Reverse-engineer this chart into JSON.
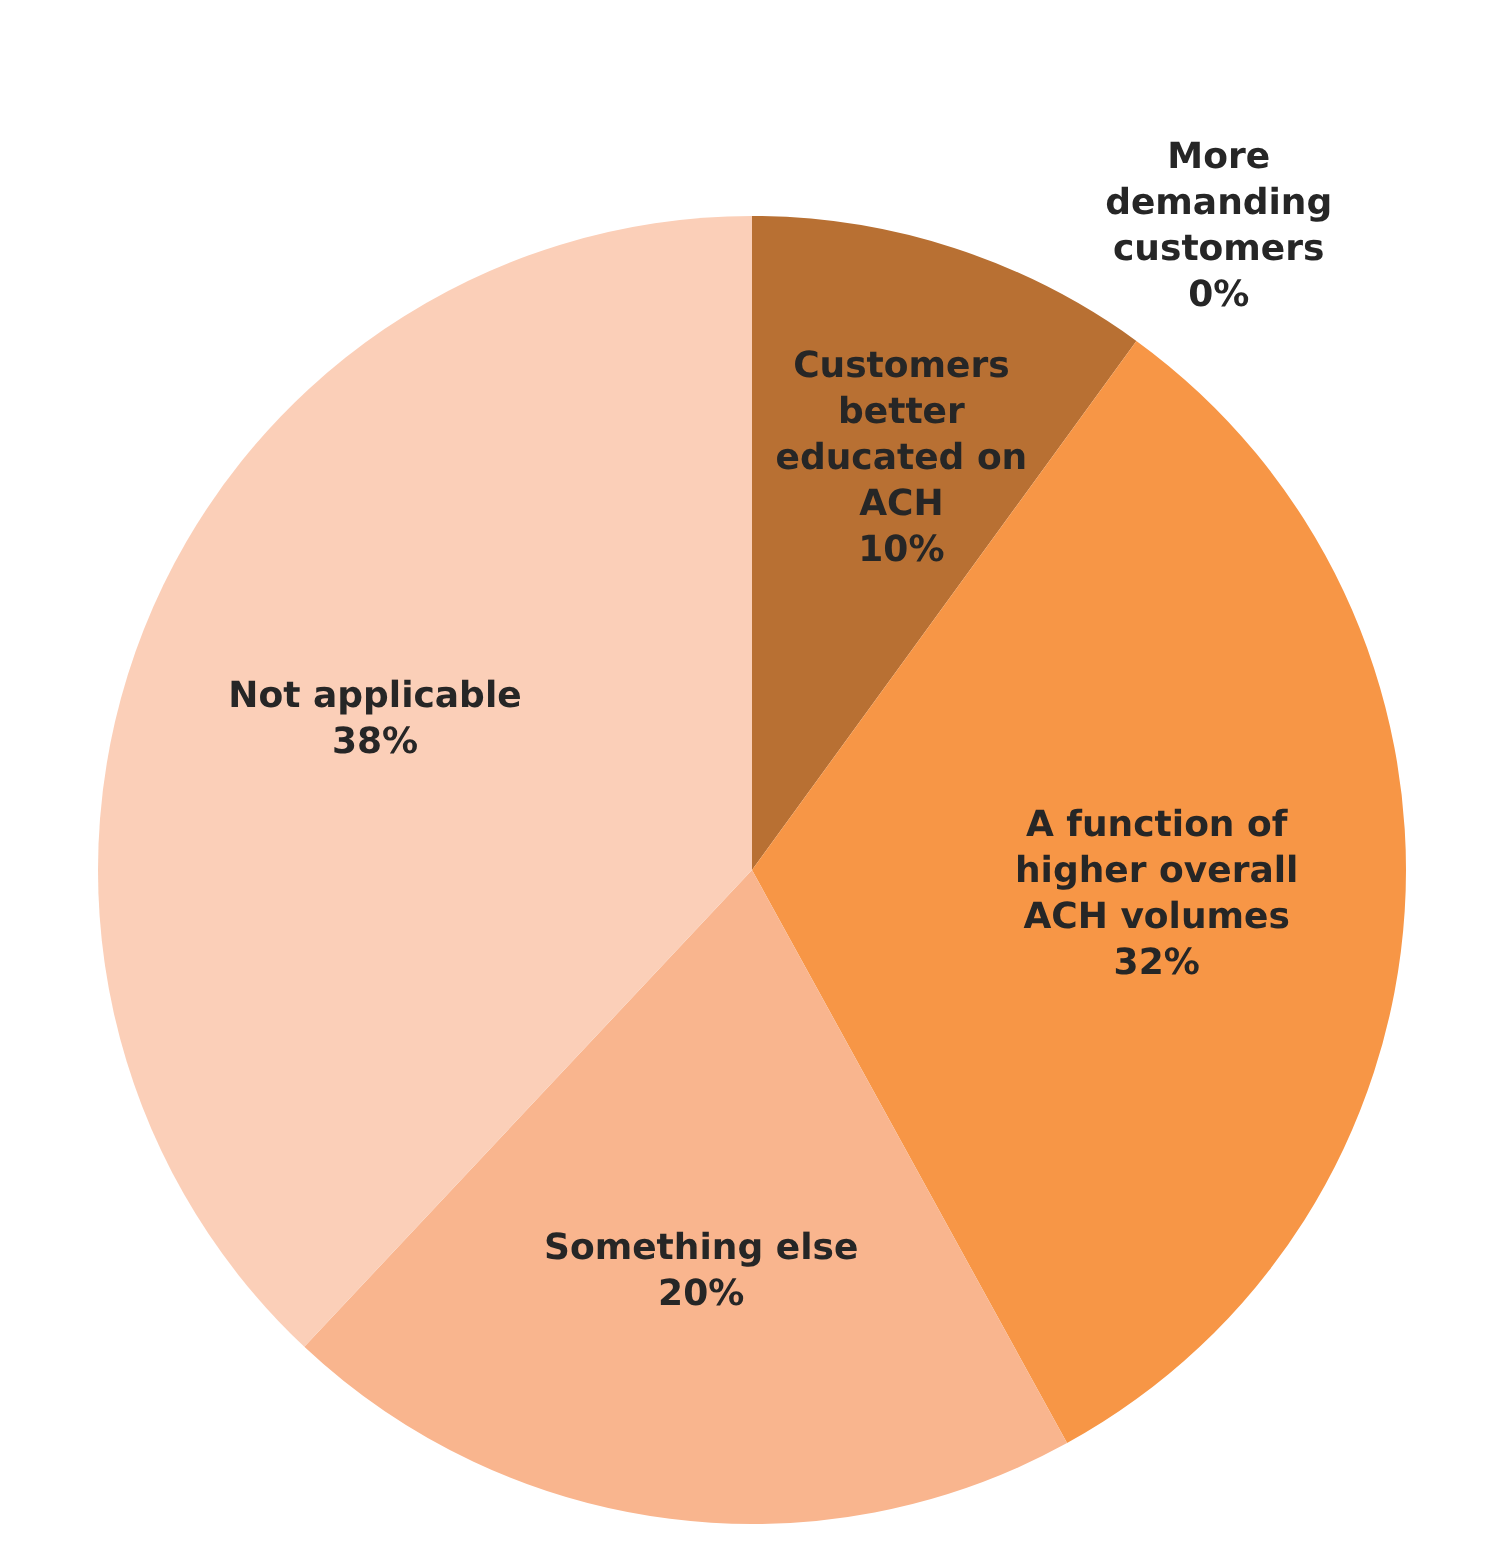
{
  "chart_data": {
    "type": "pie",
    "categories": [
      "Customers better educated on ACH",
      "More demanding customers",
      "A function of higher overall ACH volumes",
      "Something else",
      "Not applicable"
    ],
    "values": [
      10,
      0,
      32,
      20,
      38
    ],
    "colors": [
      "#b87033",
      "#e46c0a",
      "#f79646",
      "#f9b58e",
      "#fbcfb8"
    ],
    "value_labels": [
      "10%",
      "0%",
      "32%",
      "20%",
      "38%"
    ],
    "legend": false
  }
}
